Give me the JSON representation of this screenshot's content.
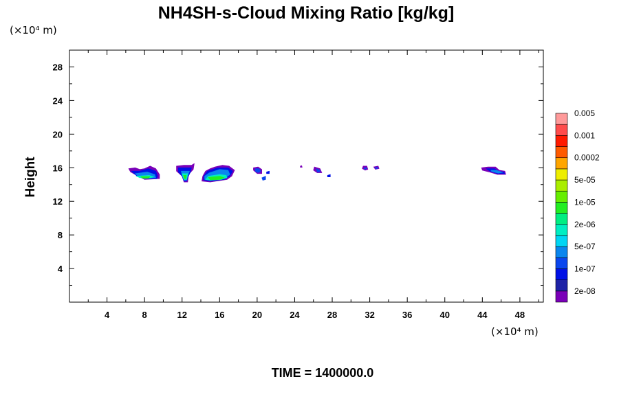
{
  "chart_data": {
    "type": "heatmap",
    "title": "NH4SH-s-Cloud Mixing Ratio [kg/kg]",
    "ylabel": "Height",
    "x_unit_text": "(×10⁴ m)",
    "y_unit_text": "(×10⁴ m)",
    "xlim": [
      0,
      50.5
    ],
    "ylim": [
      0,
      30
    ],
    "x_ticks": [
      4,
      8,
      12,
      16,
      20,
      24,
      28,
      32,
      36,
      40,
      44,
      48
    ],
    "y_ticks": [
      4,
      8,
      12,
      16,
      20,
      24,
      28
    ],
    "time_label": "TIME = 1400000.0",
    "colorbar": {
      "colors": [
        "#7a00b8",
        "#1e22a6",
        "#0010e6",
        "#0a46ee",
        "#0a86ee",
        "#00d6f4",
        "#00eec2",
        "#00ee82",
        "#22ee22",
        "#66ee00",
        "#aaee00",
        "#eeee00",
        "#ffa500",
        "#ff5a00",
        "#ff1a00",
        "#ff4c4c",
        "#ff9a9a"
      ],
      "labels": [
        {
          "text": "2e-08",
          "index": 1
        },
        {
          "text": "1e-07",
          "index": 3
        },
        {
          "text": "5e-07",
          "index": 5
        },
        {
          "text": "2e-06",
          "index": 7
        },
        {
          "text": "1e-05",
          "index": 9
        },
        {
          "text": "5e-05",
          "index": 11
        },
        {
          "text": "0.0002",
          "index": 13
        },
        {
          "text": "0.001",
          "index": 15
        },
        {
          "text": "0.005",
          "index": 17
        }
      ]
    },
    "clouds": [
      {
        "name": "cloud-1",
        "layers": [
          {
            "level": 0,
            "pts": [
              [
                6.3,
                15.9
              ],
              [
                7.0,
                16.0
              ],
              [
                7.5,
                15.8
              ],
              [
                8.0,
                15.9
              ],
              [
                8.6,
                16.2
              ],
              [
                9.2,
                15.9
              ],
              [
                9.6,
                15.2
              ],
              [
                9.6,
                14.7
              ],
              [
                8.0,
                14.6
              ],
              [
                7.3,
                15.0
              ],
              [
                6.5,
                15.5
              ]
            ]
          },
          {
            "level": 2,
            "pts": [
              [
                6.6,
                15.6
              ],
              [
                7.5,
                15.6
              ],
              [
                8.4,
                15.9
              ],
              [
                9.2,
                15.6
              ],
              [
                9.4,
                15.0
              ],
              [
                9.3,
                14.7
              ],
              [
                8.0,
                14.7
              ],
              [
                7.2,
                15.0
              ]
            ]
          },
          {
            "level": 4,
            "pts": [
              [
                7.0,
                15.3
              ],
              [
                8.3,
                15.5
              ],
              [
                9.1,
                15.2
              ],
              [
                9.2,
                14.8
              ],
              [
                8.0,
                14.7
              ],
              [
                7.3,
                15.0
              ]
            ]
          },
          {
            "level": 6,
            "pts": [
              [
                7.1,
                15.0
              ],
              [
                8.5,
                15.1
              ],
              [
                9.0,
                14.9
              ],
              [
                8.6,
                14.8
              ],
              [
                7.5,
                14.8
              ]
            ]
          },
          {
            "level": 8,
            "pts": [
              [
                7.6,
                14.95
              ],
              [
                8.6,
                14.95
              ],
              [
                8.4,
                14.75
              ],
              [
                7.8,
                14.75
              ]
            ]
          }
        ]
      },
      {
        "name": "cloud-2",
        "layers": [
          {
            "level": 0,
            "pts": [
              [
                11.4,
                16.2
              ],
              [
                12.2,
                16.3
              ],
              [
                13.0,
                16.3
              ],
              [
                13.3,
                16.5
              ],
              [
                13.2,
                15.8
              ],
              [
                12.7,
                15.2
              ],
              [
                12.6,
                14.3
              ],
              [
                12.2,
                14.3
              ],
              [
                12.0,
                15.0
              ],
              [
                11.4,
                15.6
              ]
            ]
          },
          {
            "level": 2,
            "pts": [
              [
                11.6,
                16.0
              ],
              [
                13.0,
                16.0
              ],
              [
                12.9,
                15.5
              ],
              [
                12.6,
                14.8
              ],
              [
                12.5,
                14.4
              ],
              [
                12.2,
                14.4
              ],
              [
                12.0,
                15.0
              ],
              [
                11.6,
                15.5
              ]
            ]
          },
          {
            "level": 4,
            "pts": [
              [
                11.9,
                15.6
              ],
              [
                12.8,
                15.6
              ],
              [
                12.6,
                15.0
              ],
              [
                12.5,
                14.5
              ],
              [
                12.2,
                14.5
              ],
              [
                12.0,
                15.1
              ]
            ]
          },
          {
            "level": 6,
            "pts": [
              [
                12.0,
                15.3
              ],
              [
                12.6,
                15.3
              ],
              [
                12.5,
                14.6
              ],
              [
                12.2,
                14.6
              ]
            ]
          },
          {
            "level": 8,
            "pts": [
              [
                12.15,
                15.1
              ],
              [
                12.45,
                15.1
              ],
              [
                12.4,
                14.7
              ],
              [
                12.25,
                14.7
              ]
            ]
          }
        ]
      },
      {
        "name": "cloud-3",
        "layers": [
          {
            "level": 0,
            "pts": [
              [
                14.5,
                15.6
              ],
              [
                15.0,
                15.9
              ],
              [
                15.5,
                16.1
              ],
              [
                16.3,
                16.3
              ],
              [
                17.0,
                16.2
              ],
              [
                17.6,
                15.7
              ],
              [
                17.3,
                15.0
              ],
              [
                16.8,
                14.6
              ],
              [
                15.0,
                14.3
              ],
              [
                14.1,
                14.4
              ],
              [
                14.2,
                15.0
              ]
            ]
          },
          {
            "level": 2,
            "pts": [
              [
                14.7,
                15.6
              ],
              [
                15.8,
                16.0
              ],
              [
                16.9,
                16.0
              ],
              [
                17.4,
                15.6
              ],
              [
                17.1,
                15.0
              ],
              [
                16.5,
                14.6
              ],
              [
                15.0,
                14.4
              ],
              [
                14.3,
                14.5
              ],
              [
                14.3,
                15.0
              ]
            ]
          },
          {
            "level": 4,
            "pts": [
              [
                14.9,
                15.4
              ],
              [
                16.0,
                15.8
              ],
              [
                16.9,
                15.7
              ],
              [
                17.1,
                15.2
              ],
              [
                16.5,
                14.7
              ],
              [
                15.0,
                14.5
              ],
              [
                14.4,
                14.6
              ],
              [
                14.4,
                15.0
              ]
            ]
          },
          {
            "level": 6,
            "pts": [
              [
                14.8,
                15.0
              ],
              [
                16.0,
                15.2
              ],
              [
                16.7,
                15.1
              ],
              [
                16.8,
                14.8
              ],
              [
                16.2,
                14.6
              ],
              [
                15.0,
                14.5
              ],
              [
                14.5,
                14.6
              ]
            ]
          },
          {
            "level": 8,
            "pts": [
              [
                14.8,
                14.85
              ],
              [
                16.0,
                15.0
              ],
              [
                16.5,
                14.8
              ],
              [
                16.0,
                14.6
              ],
              [
                15.0,
                14.55
              ]
            ]
          }
        ]
      },
      {
        "name": "cloud-4",
        "layers": [
          {
            "level": 0,
            "pts": [
              [
                19.6,
                16.0
              ],
              [
                20.1,
                16.1
              ],
              [
                20.5,
                15.8
              ],
              [
                20.5,
                15.3
              ],
              [
                20.0,
                15.3
              ],
              [
                19.6,
                15.7
              ]
            ]
          },
          {
            "level": 3,
            "pts": [
              [
                19.8,
                15.9
              ],
              [
                20.2,
                15.9
              ],
              [
                20.4,
                15.6
              ],
              [
                20.1,
                15.4
              ],
              [
                19.8,
                15.6
              ]
            ]
          }
        ]
      },
      {
        "name": "speck-1",
        "layers": [
          {
            "level": 3,
            "pts": [
              [
                20.5,
                14.8
              ],
              [
                20.9,
                15.0
              ],
              [
                20.9,
                14.6
              ],
              [
                20.6,
                14.5
              ]
            ]
          }
        ]
      },
      {
        "name": "speck-2",
        "layers": [
          {
            "level": 2,
            "pts": [
              [
                21.0,
                15.5
              ],
              [
                21.3,
                15.6
              ],
              [
                21.3,
                15.3
              ],
              [
                21.0,
                15.3
              ]
            ]
          }
        ]
      },
      {
        "name": "speck-3",
        "layers": [
          {
            "level": 0,
            "pts": [
              [
                24.6,
                16.2
              ],
              [
                24.75,
                16.25
              ],
              [
                24.8,
                16.05
              ],
              [
                24.6,
                16.05
              ]
            ]
          }
        ]
      },
      {
        "name": "cloud-5",
        "layers": [
          {
            "level": 0,
            "pts": [
              [
                26.1,
                16.1
              ],
              [
                26.7,
                15.9
              ],
              [
                26.9,
                15.4
              ],
              [
                26.4,
                15.4
              ],
              [
                26.0,
                15.7
              ]
            ]
          },
          {
            "level": 3,
            "pts": [
              [
                26.3,
                15.9
              ],
              [
                26.7,
                15.7
              ],
              [
                26.7,
                15.5
              ],
              [
                26.4,
                15.5
              ]
            ]
          }
        ]
      },
      {
        "name": "speck-4",
        "layers": [
          {
            "level": 2,
            "pts": [
              [
                27.5,
                15.1
              ],
              [
                27.8,
                15.2
              ],
              [
                27.8,
                14.9
              ],
              [
                27.5,
                14.9
              ]
            ]
          }
        ]
      },
      {
        "name": "cloud-6",
        "layers": [
          {
            "level": 0,
            "pts": [
              [
                31.3,
                16.2
              ],
              [
                31.7,
                16.2
              ],
              [
                31.8,
                15.8
              ],
              [
                31.5,
                15.7
              ],
              [
                31.2,
                15.9
              ]
            ]
          },
          {
            "level": 3,
            "pts": [
              [
                31.4,
                16.0
              ],
              [
                31.65,
                16.0
              ],
              [
                31.65,
                15.85
              ],
              [
                31.4,
                15.85
              ]
            ]
          }
        ]
      },
      {
        "name": "cloud-7",
        "layers": [
          {
            "level": 0,
            "pts": [
              [
                32.4,
                16.1
              ],
              [
                32.9,
                16.2
              ],
              [
                33.0,
                15.9
              ],
              [
                32.6,
                15.8
              ]
            ]
          },
          {
            "level": 3,
            "pts": [
              [
                32.6,
                16.05
              ],
              [
                32.85,
                16.05
              ],
              [
                32.85,
                15.9
              ],
              [
                32.6,
                15.9
              ]
            ]
          }
        ]
      },
      {
        "name": "cloud-8",
        "layers": [
          {
            "level": 0,
            "pts": [
              [
                43.9,
                16.0
              ],
              [
                44.6,
                16.1
              ],
              [
                45.4,
                16.1
              ],
              [
                45.8,
                15.7
              ],
              [
                46.4,
                15.6
              ],
              [
                46.5,
                15.2
              ],
              [
                45.6,
                15.2
              ],
              [
                44.7,
                15.5
              ],
              [
                44.0,
                15.7
              ]
            ]
          },
          {
            "level": 2,
            "pts": [
              [
                44.4,
                15.9
              ],
              [
                45.3,
                15.9
              ],
              [
                45.7,
                15.6
              ],
              [
                46.3,
                15.5
              ],
              [
                46.4,
                15.3
              ],
              [
                45.6,
                15.3
              ],
              [
                44.8,
                15.6
              ]
            ]
          },
          {
            "level": 4,
            "pts": [
              [
                44.9,
                15.7
              ],
              [
                45.5,
                15.7
              ],
              [
                46.2,
                15.45
              ],
              [
                45.7,
                15.35
              ],
              [
                45.0,
                15.55
              ]
            ]
          }
        ]
      }
    ]
  }
}
